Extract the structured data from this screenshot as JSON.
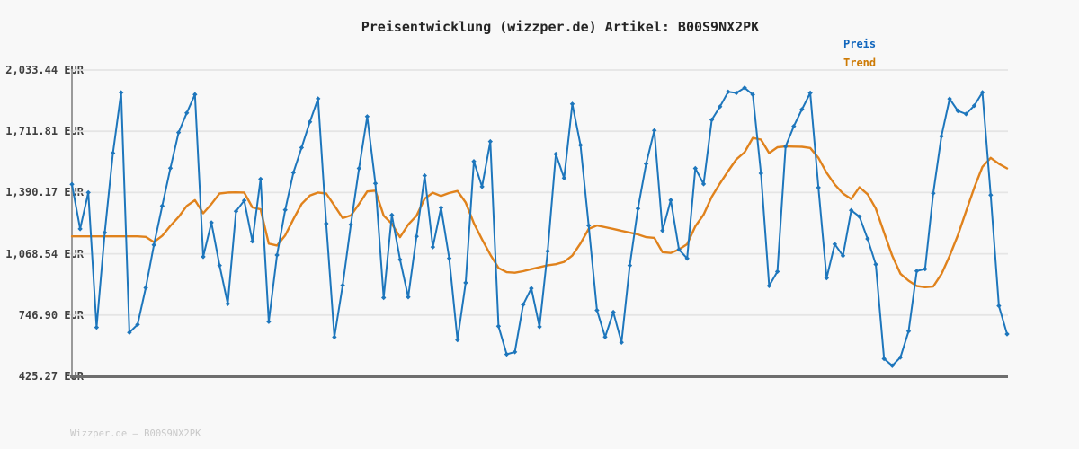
{
  "title": "Preisentwicklung (wizzper.de) Artikel: B00S9NX2PK",
  "legend": {
    "items": [
      {
        "label": "Preis",
        "color": "#1166bd"
      },
      {
        "label": "Trend",
        "color": "#cd7a05"
      }
    ]
  },
  "watermark": "Wizzper.de — B00S9NX2PK",
  "colors": {
    "background": "#f8f8f8",
    "grid": "#e5e5e5",
    "axis_left": "#9a9a9a",
    "axis_bottom": "#6e6e6e",
    "price_line": "#1d76bc",
    "trend_line": "#e0821c",
    "title_text": "#252525",
    "tick_text": "#404040",
    "watermark_text": "#c8c8c8"
  },
  "chart_data": {
    "type": "line",
    "title": "Preisentwicklung (wizzper.de) Artikel: B00S9NX2PK",
    "currency": "EUR",
    "ylim": [
      425.27,
      2033.44
    ],
    "y_ticks": [
      {
        "label": "2,033.44 EUR",
        "value": 2033.44
      },
      {
        "label": "1,711.81 EUR",
        "value": 1711.81
      },
      {
        "label": "1,390.17 EUR",
        "value": 1390.17
      },
      {
        "label": "1,068.54 EUR",
        "value": 1068.54
      },
      {
        "label": "746.90 EUR",
        "value": 746.9
      },
      {
        "label": "425.27 EUR",
        "value": 425.27
      }
    ],
    "x_axis": {
      "tick_labels_visible": false,
      "n_points": 115
    },
    "grid": true,
    "legend_position": "top-right",
    "series": [
      {
        "name": "Trend",
        "color": "#e0821c",
        "marker": "none",
        "line_width": 2.4,
        "values": [
          1160,
          1160,
          1160,
          1160,
          1160,
          1160,
          1160,
          1160,
          1160,
          1157,
          1130,
          1163,
          1215,
          1262,
          1320,
          1350,
          1281,
          1330,
          1385,
          1390,
          1391,
          1390,
          1312,
          1302,
          1122,
          1112,
          1165,
          1250,
          1330,
          1374,
          1390,
          1385,
          1322,
          1256,
          1270,
          1330,
          1396,
          1400,
          1269,
          1226,
          1156,
          1222,
          1268,
          1358,
          1389,
          1372,
          1388,
          1398,
          1338,
          1229,
          1144,
          1064,
          994,
          972,
          969,
          977,
          988,
          998,
          1008,
          1014,
          1026,
          1059,
          1123,
          1199,
          1217,
          1208,
          1199,
          1189,
          1180,
          1170,
          1156,
          1152,
          1077,
          1073,
          1091,
          1119,
          1213,
          1274,
          1368,
          1438,
          1503,
          1564,
          1602,
          1677,
          1668,
          1597,
          1628,
          1632,
          1631,
          1630,
          1624,
          1572,
          1494,
          1432,
          1385,
          1356,
          1418,
          1381,
          1306,
          1180,
          1058,
          964,
          927,
          899,
          893,
          897,
          962,
          1057,
          1166,
          1291,
          1415,
          1525,
          1572,
          1541,
          1517
        ]
      },
      {
        "name": "Preis",
        "color": "#1d76bc",
        "marker": "diamond",
        "line_width": 2,
        "values": [
          1433,
          1199,
          1390,
          682,
          1180,
          1597,
          1915,
          655,
          697,
          890,
          1115,
          1320,
          1518,
          1705,
          1808,
          1905,
          1053,
          1232,
          1007,
          806,
          1292,
          1348,
          1134,
          1461,
          712,
          1062,
          1299,
          1495,
          1626,
          1761,
          1883,
          1227,
          631,
          903,
          1222,
          1517,
          1789,
          1438,
          838,
          1272,
          1038,
          841,
          1160,
          1479,
          1104,
          1311,
          1045,
          616,
          916,
          1554,
          1421,
          1658,
          688,
          541,
          553,
          801,
          887,
          685,
          1082,
          1592,
          1466,
          1855,
          1639,
          1217,
          772,
          632,
          762,
          603,
          1007,
          1306,
          1541,
          1716,
          1190,
          1350,
          1091,
          1044,
          1517,
          1435,
          1772,
          1841,
          1919,
          1913,
          1940,
          1904,
          1491,
          900,
          975,
          1631,
          1738,
          1827,
          1913,
          1416,
          941,
          1119,
          1058,
          1297,
          1264,
          1147,
          1013,
          517,
          481,
          525,
          662,
          978,
          989,
          1386,
          1686,
          1882,
          1819,
          1803,
          1846,
          1916,
          1377,
          795,
          647
        ]
      }
    ]
  }
}
